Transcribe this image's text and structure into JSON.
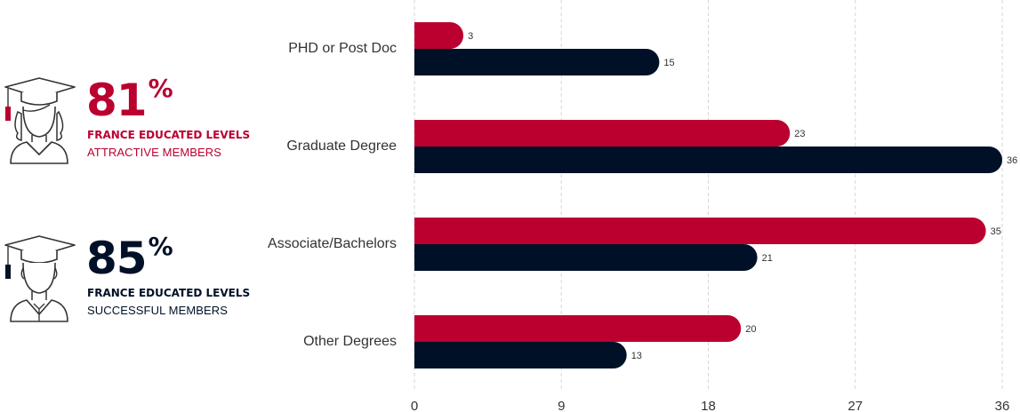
{
  "stats": [
    {
      "value": "81",
      "suffix": "%",
      "line1": "FRANCE EDUCATED LEVELS",
      "line2": "ATTRACTIVE MEMBERS",
      "color": "#bb0030",
      "icon": "female-graduate-icon"
    },
    {
      "value": "85",
      "suffix": "%",
      "line1": "FRANCE EDUCATED LEVELS",
      "line2": "SUCCESSFUL MEMBERS",
      "color": "#001027",
      "icon": "male-graduate-icon"
    }
  ],
  "colors": {
    "primary": "#bb0030",
    "secondary": "#001027",
    "grid": "#d6d6d6",
    "text": "#333333"
  },
  "chart_data": {
    "type": "bar",
    "orientation": "horizontal",
    "categories": [
      "PHD or Post Doc",
      "Graduate Degree",
      "Associate/Bachelors",
      "Other Degrees"
    ],
    "series": [
      {
        "values": [
          3,
          23,
          35,
          20
        ],
        "color": "#bb0030"
      },
      {
        "values": [
          15,
          36,
          21,
          13
        ],
        "color": "#001027"
      }
    ],
    "xlim": [
      0,
      36
    ],
    "xticks": [
      0,
      9,
      18,
      27,
      36
    ],
    "grid": true,
    "data_labels": true
  }
}
